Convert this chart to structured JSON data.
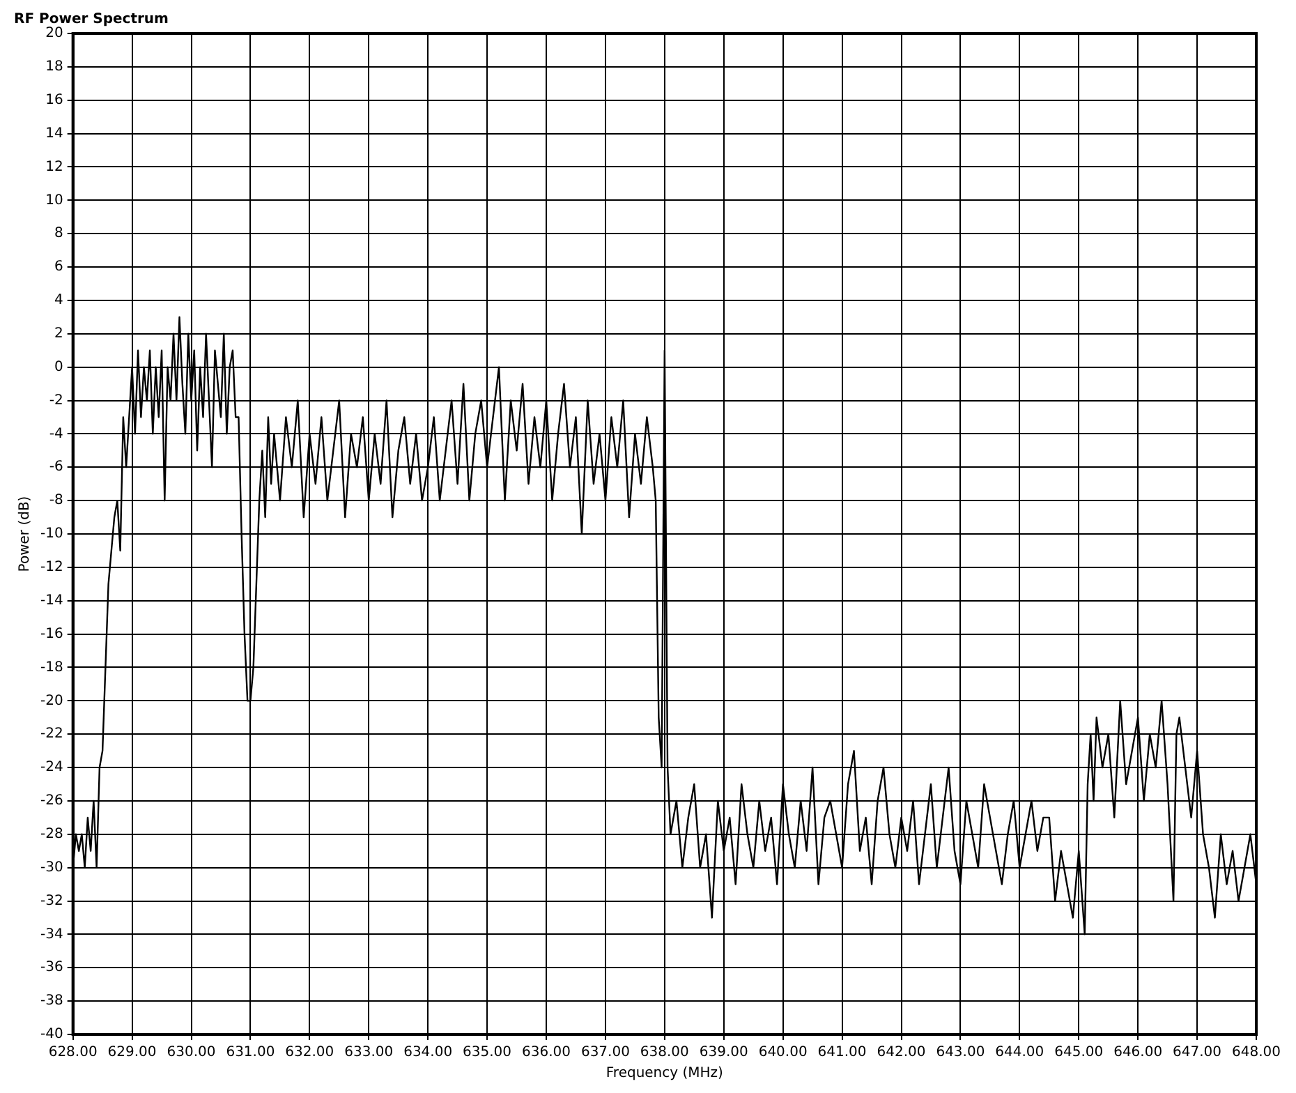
{
  "chart_data": {
    "type": "line",
    "title": "RF Power Spectrum",
    "xlabel": "Frequency (MHz)",
    "ylabel": "Power (dB)",
    "xlim": [
      628,
      648
    ],
    "ylim": [
      -40,
      20
    ],
    "xticks": [
      {
        "value": 628,
        "label": "628.00"
      },
      {
        "value": 629,
        "label": "629.00"
      },
      {
        "value": 630,
        "label": "630.00"
      },
      {
        "value": 631,
        "label": "631.00"
      },
      {
        "value": 632,
        "label": "632.00"
      },
      {
        "value": 633,
        "label": "633.00"
      },
      {
        "value": 634,
        "label": "634.00"
      },
      {
        "value": 635,
        "label": "635.00"
      },
      {
        "value": 636,
        "label": "636.00"
      },
      {
        "value": 637,
        "label": "637.00"
      },
      {
        "value": 638,
        "label": "638.00"
      },
      {
        "value": 639,
        "label": "639.00"
      },
      {
        "value": 640,
        "label": "640.00"
      },
      {
        "value": 641,
        "label": "641.00"
      },
      {
        "value": 642,
        "label": "642.00"
      },
      {
        "value": 643,
        "label": "643.00"
      },
      {
        "value": 644,
        "label": "644.00"
      },
      {
        "value": 645,
        "label": "645.00"
      },
      {
        "value": 646,
        "label": "646.00"
      },
      {
        "value": 647,
        "label": "647.00"
      },
      {
        "value": 648,
        "label": "648.00"
      }
    ],
    "yticks": [
      -40,
      -38,
      -36,
      -34,
      -32,
      -30,
      -28,
      -26,
      -24,
      -22,
      -20,
      -18,
      -16,
      -14,
      -12,
      -10,
      -8,
      -6,
      -4,
      -2,
      0,
      2,
      4,
      6,
      8,
      10,
      12,
      14,
      16,
      18,
      20
    ],
    "grid": true,
    "legend": false,
    "marker": "none",
    "line_style": "solid",
    "series": [
      {
        "color": "#000000",
        "x": [
          628.0,
          628.05,
          628.1,
          628.15,
          628.2,
          628.25,
          628.3,
          628.35,
          628.4,
          628.45,
          628.5,
          628.55,
          628.6,
          628.65,
          628.7,
          628.75,
          628.8,
          628.85,
          628.9,
          628.95,
          629.0,
          629.05,
          629.1,
          629.15,
          629.2,
          629.25,
          629.3,
          629.35,
          629.4,
          629.45,
          629.5,
          629.55,
          629.6,
          629.65,
          629.7,
          629.75,
          629.8,
          629.85,
          629.9,
          629.95,
          630.0,
          630.05,
          630.1,
          630.15,
          630.2,
          630.25,
          630.3,
          630.35,
          630.4,
          630.45,
          630.5,
          630.55,
          630.6,
          630.65,
          630.7,
          630.75,
          630.8,
          630.85,
          630.9,
          630.95,
          631.0,
          631.05,
          631.1,
          631.15,
          631.2,
          631.25,
          631.3,
          631.35,
          631.4,
          631.5,
          631.6,
          631.7,
          631.8,
          631.9,
          632.0,
          632.1,
          632.2,
          632.3,
          632.4,
          632.5,
          632.6,
          632.7,
          632.8,
          632.9,
          633.0,
          633.1,
          633.2,
          633.3,
          633.4,
          633.5,
          633.6,
          633.7,
          633.8,
          633.9,
          634.0,
          634.1,
          634.2,
          634.3,
          634.4,
          634.5,
          634.6,
          634.7,
          634.8,
          634.9,
          635.0,
          635.1,
          635.2,
          635.3,
          635.4,
          635.5,
          635.6,
          635.7,
          635.8,
          635.9,
          636.0,
          636.1,
          636.2,
          636.3,
          636.4,
          636.5,
          636.6,
          636.7,
          636.8,
          636.9,
          637.0,
          637.1,
          637.2,
          637.3,
          637.4,
          637.5,
          637.6,
          637.7,
          637.8,
          637.85,
          637.9,
          637.95,
          638.0,
          638.05,
          638.1,
          638.2,
          638.3,
          638.4,
          638.5,
          638.6,
          638.7,
          638.8,
          638.9,
          639.0,
          639.1,
          639.2,
          639.3,
          639.4,
          639.5,
          639.6,
          639.7,
          639.8,
          639.9,
          640.0,
          640.1,
          640.2,
          640.3,
          640.4,
          640.5,
          640.6,
          640.7,
          640.8,
          640.9,
          641.0,
          641.1,
          641.2,
          641.3,
          641.4,
          641.5,
          641.6,
          641.7,
          641.8,
          641.9,
          642.0,
          642.1,
          642.2,
          642.3,
          642.4,
          642.5,
          642.6,
          642.7,
          642.8,
          642.9,
          643.0,
          643.1,
          643.2,
          643.3,
          643.4,
          643.5,
          643.6,
          643.7,
          643.8,
          643.9,
          644.0,
          644.1,
          644.2,
          644.3,
          644.4,
          644.5,
          644.6,
          644.7,
          644.8,
          644.9,
          645.0,
          645.1,
          645.15,
          645.2,
          645.25,
          645.3,
          645.4,
          645.5,
          645.6,
          645.7,
          645.8,
          645.9,
          646.0,
          646.1,
          646.2,
          646.3,
          646.4,
          646.5,
          646.6,
          646.65,
          646.7,
          646.8,
          646.9,
          647.0,
          647.1,
          647.2,
          647.3,
          647.4,
          647.5,
          647.6,
          647.7,
          647.8,
          647.9,
          648.0
        ],
        "values": [
          -30,
          -28,
          -29,
          -28,
          -30,
          -27,
          -29,
          -26,
          -30,
          -24,
          -23,
          -18,
          -13,
          -11,
          -9,
          -8,
          -11,
          -3,
          -6,
          -3,
          0,
          -4,
          1,
          -3,
          0,
          -2,
          1,
          -4,
          0,
          -3,
          1,
          -8,
          0,
          -2,
          2,
          -2,
          3,
          -1,
          -4,
          2,
          -2,
          1,
          -5,
          0,
          -3,
          2,
          -2,
          -6,
          1,
          -1,
          -3,
          2,
          -4,
          0,
          1,
          -3,
          -3,
          -10,
          -16,
          -20,
          -20,
          -18,
          -13,
          -8,
          -5,
          -9,
          -3,
          -7,
          -4,
          -8,
          -3,
          -6,
          -2,
          -9,
          -4,
          -7,
          -3,
          -8,
          -5,
          -2,
          -9,
          -4,
          -6,
          -3,
          -8,
          -4,
          -7,
          -2,
          -9,
          -5,
          -3,
          -7,
          -4,
          -8,
          -6,
          -3,
          -8,
          -5,
          -2,
          -7,
          -1,
          -8,
          -4,
          -2,
          -6,
          -3,
          0,
          -8,
          -2,
          -5,
          -1,
          -7,
          -3,
          -6,
          -2,
          -8,
          -4,
          -1,
          -6,
          -3,
          -10,
          -2,
          -7,
          -4,
          -8,
          -3,
          -6,
          -2,
          -9,
          -4,
          -7,
          -3,
          -6,
          -8,
          -21,
          -24,
          1,
          -24,
          -28,
          -26,
          -30,
          -27,
          -25,
          -30,
          -28,
          -33,
          -26,
          -29,
          -27,
          -31,
          -25,
          -28,
          -30,
          -26,
          -29,
          -27,
          -31,
          -25,
          -28,
          -30,
          -26,
          -29,
          -24,
          -31,
          -27,
          -26,
          -28,
          -30,
          -25,
          -23,
          -29,
          -27,
          -31,
          -26,
          -24,
          -28,
          -30,
          -27,
          -29,
          -26,
          -31,
          -28,
          -25,
          -30,
          -27,
          -24,
          -29,
          -31,
          -26,
          -28,
          -30,
          -25,
          -27,
          -29,
          -31,
          -28,
          -26,
          -30,
          -28,
          -26,
          -29,
          -27,
          -27,
          -32,
          -29,
          -31,
          -33,
          -29,
          -34,
          -25,
          -22,
          -26,
          -21,
          -24,
          -22,
          -27,
          -20,
          -25,
          -23,
          -21,
          -26,
          -22,
          -24,
          -20,
          -25,
          -32,
          -22,
          -21,
          -24,
          -27,
          -23,
          -28,
          -30,
          -33,
          -28,
          -31,
          -29,
          -32,
          -30,
          -28,
          -31
        ]
      }
    ]
  }
}
